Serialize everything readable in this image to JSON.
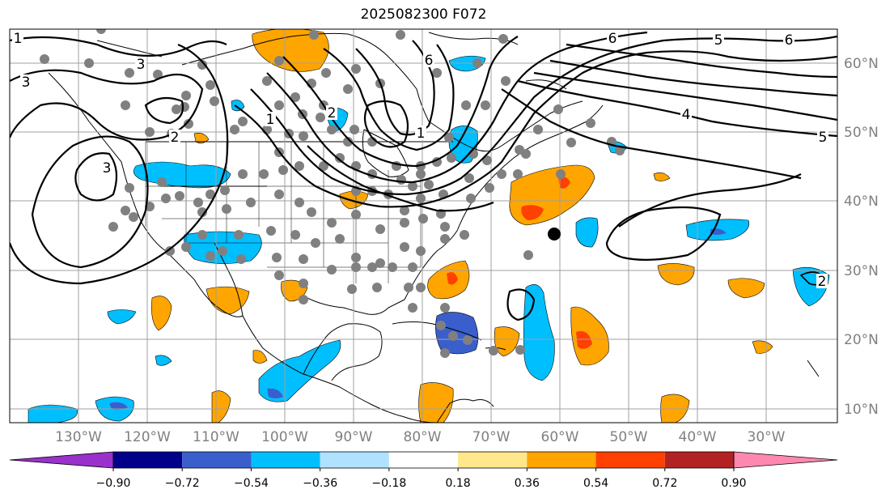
{
  "title": "2025082300 F072",
  "lat_labels": [
    "60°N",
    "50°N",
    "40°N",
    "30°N",
    "20°N",
    "10°N"
  ],
  "lon_labels": [
    "130°W",
    "120°W",
    "110°W",
    "100°W",
    "90°W",
    "80°W",
    "70°W",
    "60°W",
    "50°W",
    "40°W",
    "30°W"
  ],
  "contour_labels": [
    "3",
    "6",
    "6",
    "5",
    "6",
    "1",
    "2",
    "3",
    "3",
    "1",
    "2",
    "4",
    "5",
    "2",
    "1"
  ],
  "colorbar": {
    "ticks": [
      "−0.90",
      "−0.72",
      "−0.54",
      "−0.36",
      "−0.18",
      "0.18",
      "0.36",
      "0.54",
      "0.72",
      "0.90"
    ],
    "colors": [
      "#9932cc",
      "#00008b",
      "#3a5fcd",
      "#00bfff",
      "#b0e2ff",
      "#ffffff",
      "#ffe78c",
      "#ffa500",
      "#ff4000",
      "#b22222",
      "#ff88b0"
    ]
  },
  "colors": {
    "land_outline": "#000000",
    "grid": "#a0a0a0",
    "station": "#808080",
    "marker": "#000000"
  }
}
